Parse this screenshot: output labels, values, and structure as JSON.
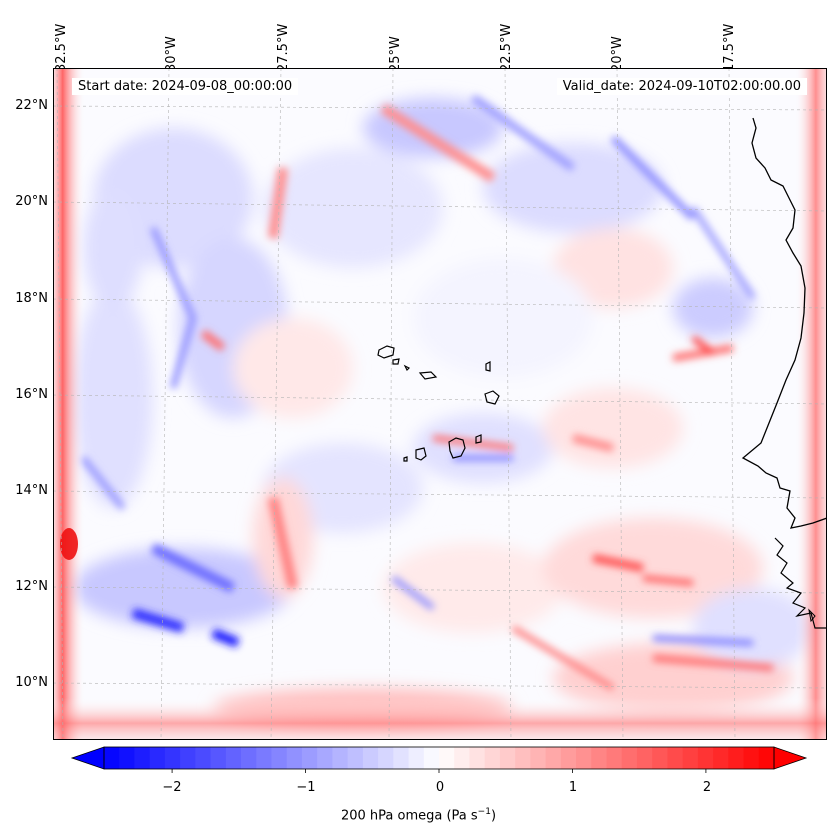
{
  "map": {
    "start_date": "Start date: 2024-09-08_00:00:00",
    "valid_date": "Valid_date: 2024-09-10T02:00:00.00",
    "lon_labels": [
      "32.5°W",
      "30°W",
      "27.5°W",
      "25°W",
      "22.5°W",
      "20°W",
      "17.5°W"
    ],
    "lat_labels": [
      "22°N",
      "20°N",
      "18°N",
      "16°N",
      "14°N",
      "12°N",
      "10°N"
    ]
  },
  "colorbar": {
    "label_main": "200 hPa omega (Pa s",
    "label_exp": "−1",
    "label_close": ")",
    "ticks": [
      "−2",
      "−1",
      "0",
      "1",
      "2"
    ],
    "colors": {
      "low": "#0000ff",
      "mid": "#ffffff",
      "high": "#ff0000"
    },
    "range": [
      -2.75,
      2.75
    ]
  },
  "colors": {
    "coastline": "#000000",
    "grid": "#bbbbbb"
  }
}
